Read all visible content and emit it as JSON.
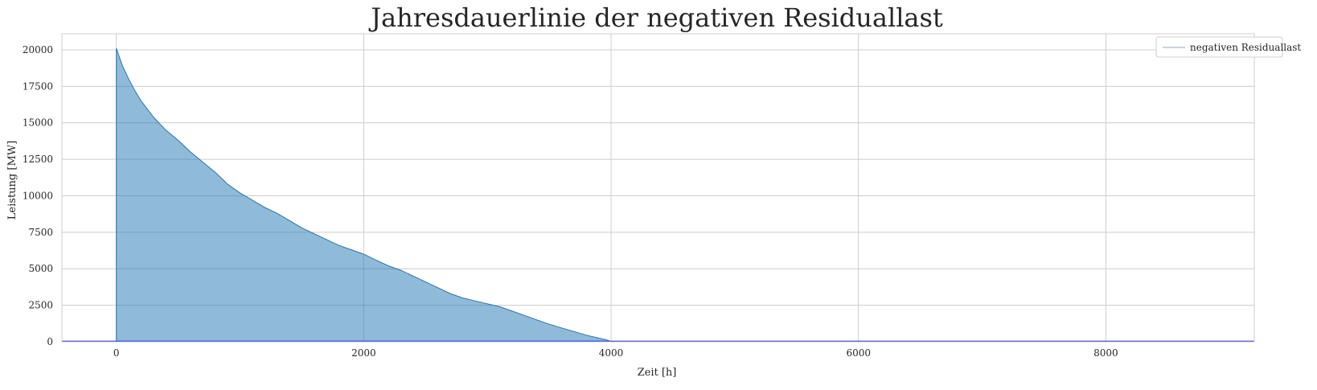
{
  "chart_data": {
    "type": "area",
    "title": "Jahresdauerlinie der negativen Residuallast",
    "xlabel": "Zeit [h]",
    "ylabel": "Leistung [MW]",
    "xlim": [
      -440,
      9200
    ],
    "ylim": [
      0,
      21100
    ],
    "x_ticks": [
      0,
      2000,
      4000,
      6000,
      8000
    ],
    "y_ticks": [
      0,
      2500,
      5000,
      7500,
      10000,
      12500,
      15000,
      17500,
      20000
    ],
    "grid": true,
    "legend_position": "top-right",
    "colors": {
      "area_fill": "#1f77b4",
      "area_line": "#1f77b4",
      "baseline": "#0000ff",
      "grid": "#cccccc",
      "frame": "#cccccc"
    },
    "series": [
      {
        "name": "negativen Residuallast",
        "x": [
          0,
          25,
          50,
          100,
          150,
          200,
          300,
          400,
          500,
          600,
          700,
          800,
          900,
          1000,
          1100,
          1200,
          1300,
          1400,
          1500,
          1600,
          1700,
          1800,
          1900,
          2000,
          2100,
          2200,
          2300,
          2400,
          2500,
          2600,
          2700,
          2800,
          2900,
          3000,
          3100,
          3200,
          3300,
          3400,
          3500,
          3600,
          3700,
          3800,
          3900,
          3960,
          4000,
          5000,
          6000,
          7000,
          8000,
          8760
        ],
        "values": [
          20100,
          19500,
          18900,
          18000,
          17200,
          16500,
          15400,
          14500,
          13800,
          13000,
          12300,
          11600,
          10800,
          10200,
          9700,
          9200,
          8800,
          8300,
          7800,
          7400,
          7000,
          6600,
          6300,
          6000,
          5600,
          5200,
          4900,
          4500,
          4100,
          3700,
          3300,
          3000,
          2800,
          2600,
          2400,
          2100,
          1800,
          1500,
          1200,
          950,
          700,
          450,
          250,
          150,
          0,
          0,
          0,
          0,
          0,
          0
        ]
      }
    ]
  }
}
